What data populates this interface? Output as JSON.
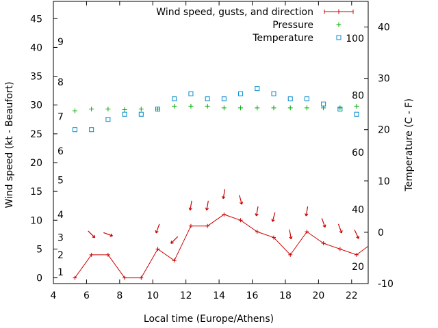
{
  "chart_data": {
    "type": "line",
    "xlabel": "Local time (Europe/Athens)",
    "ylabel_left": "Wind speed (kt - Beaufort)",
    "ylabel_right": "Temperature (C - F)",
    "xlim": [
      4,
      23
    ],
    "ylim_left": [
      -1,
      48
    ],
    "ylim_right": [
      -10,
      45
    ],
    "x_ticks": [
      4,
      6,
      8,
      10,
      12,
      14,
      16,
      18,
      20,
      22
    ],
    "y_left_ticks": [
      0,
      5,
      10,
      15,
      20,
      25,
      30,
      35,
      40,
      45
    ],
    "y_right_ticks": [
      -10,
      0,
      10,
      20,
      30,
      40
    ],
    "beaufort_labels": [
      {
        "label": "1",
        "kt": 1
      },
      {
        "label": "2",
        "kt": 4
      },
      {
        "label": "3",
        "kt": 7
      },
      {
        "label": "4",
        "kt": 11
      },
      {
        "label": "5",
        "kt": 17
      },
      {
        "label": "6",
        "kt": 22
      },
      {
        "label": "7",
        "kt": 28
      },
      {
        "label": "8",
        "kt": 34
      },
      {
        "label": "9",
        "kt": 41
      }
    ],
    "fahrenheit_labels": [
      {
        "label": "20",
        "c": -6.67
      },
      {
        "label": "40",
        "c": 4.44
      },
      {
        "label": "60",
        "c": 15.56
      },
      {
        "label": "80",
        "c": 26.67
      },
      {
        "label": "100",
        "c": 37.78
      }
    ],
    "legend": [
      {
        "label": "Wind speed, gusts, and direction",
        "color": "#cc0000",
        "symbol": "plus-line"
      },
      {
        "label": "Pressure",
        "color": "#00aa00",
        "symbol": "plus"
      },
      {
        "label": "Temperature",
        "color": "#0088cc",
        "symbol": "square"
      }
    ],
    "legend_position": "top-right",
    "series": [
      {
        "name": "Wind speed, gusts, and direction",
        "axis": "left",
        "color": "#cc0000",
        "x": [
          5.3,
          6.3,
          7.3,
          8.3,
          9.3,
          10.3,
          11.3,
          12.3,
          13.3,
          14.3,
          15.3,
          16.3,
          17.3,
          18.3,
          19.3,
          20.3,
          21.3,
          22.3,
          23
        ],
        "y": [
          0,
          4,
          4,
          0,
          0,
          5,
          3,
          9,
          9,
          11,
          10,
          8,
          7,
          4,
          8,
          6,
          5,
          4,
          5.5
        ],
        "direction_arrows": [
          {
            "x": 6.3,
            "deg": 135
          },
          {
            "x": 7.3,
            "deg": 110
          },
          {
            "x": 10.3,
            "deg": 200
          },
          {
            "x": 11.3,
            "deg": 225
          },
          {
            "x": 12.3,
            "deg": 190
          },
          {
            "x": 13.3,
            "deg": 190
          },
          {
            "x": 14.3,
            "deg": 190
          },
          {
            "x": 15.3,
            "deg": 165
          },
          {
            "x": 16.3,
            "deg": 190
          },
          {
            "x": 17.3,
            "deg": 195
          },
          {
            "x": 18.3,
            "deg": 170
          },
          {
            "x": 19.3,
            "deg": 190
          },
          {
            "x": 20.3,
            "deg": 160
          },
          {
            "x": 21.3,
            "deg": 160
          },
          {
            "x": 22.3,
            "deg": 155
          }
        ]
      },
      {
        "name": "Pressure",
        "axis": "left",
        "color": "#00aa00",
        "x": [
          5.3,
          6.3,
          7.3,
          8.3,
          9.3,
          10.3,
          11.3,
          12.3,
          13.3,
          14.3,
          15.3,
          16.3,
          17.3,
          18.3,
          19.3,
          20.3,
          21.3,
          22.3
        ],
        "y": [
          29,
          29.3,
          29.3,
          29.2,
          29.3,
          29.3,
          29.8,
          29.8,
          29.8,
          29.5,
          29.5,
          29.5,
          29.5,
          29.5,
          29.5,
          29.5,
          29.5,
          29.8
        ]
      },
      {
        "name": "Temperature",
        "axis": "right",
        "color": "#0088cc",
        "x": [
          5.3,
          6.3,
          7.3,
          8.3,
          9.3,
          10.3,
          11.3,
          12.3,
          13.3,
          14.3,
          15.3,
          16.3,
          17.3,
          18.3,
          19.3,
          20.3,
          21.3,
          22.3
        ],
        "y": [
          20,
          20,
          22,
          23,
          23,
          24,
          26,
          27,
          26,
          26,
          27,
          28,
          27,
          26,
          26,
          25,
          24,
          23
        ]
      }
    ]
  }
}
